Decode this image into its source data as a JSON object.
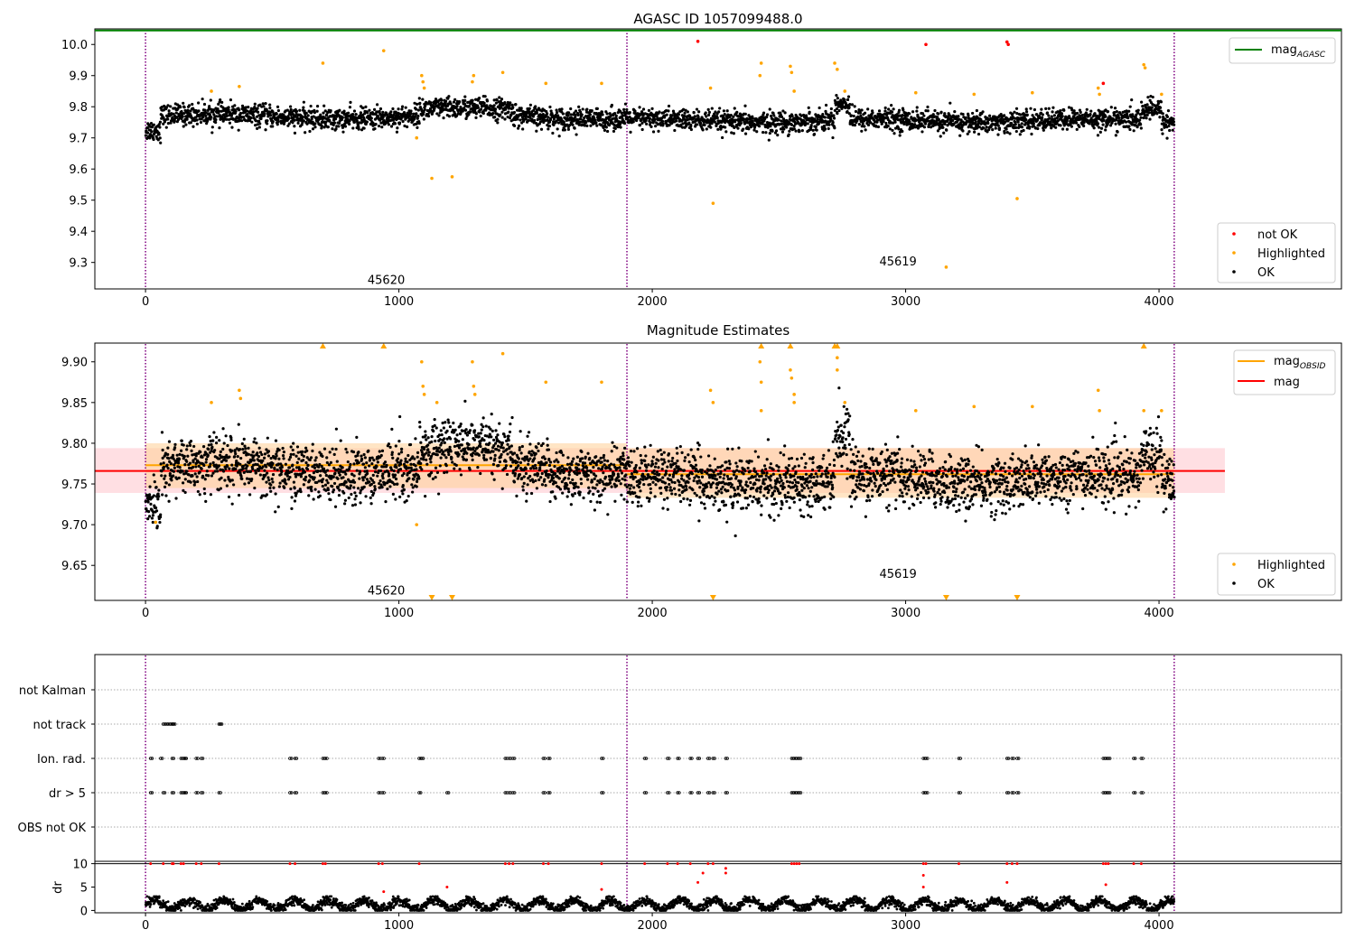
{
  "chart_data": [
    {
      "type": "scatter",
      "title": "AGASC ID 1057099488.0",
      "xlim": [
        -200,
        4720
      ],
      "ylim": [
        9.215,
        10.05
      ],
      "xticks": [
        0,
        1000,
        2000,
        3000,
        4000
      ],
      "yticks": [
        9.3,
        9.4,
        9.5,
        9.6,
        9.7,
        9.8,
        9.9,
        10.0
      ],
      "ytick_labels": [
        "9.3",
        "9.4",
        "9.5",
        "9.6",
        "9.7",
        "9.8",
        "9.9",
        "10.0"
      ],
      "obsid_boundaries": [
        0,
        1900,
        4060
      ],
      "obsid_labels": [
        {
          "text": "45620",
          "x": 950,
          "y": 9.245
        },
        {
          "text": "45619",
          "x": 2970,
          "y": 9.305
        }
      ],
      "lines": [
        {
          "name": "mag",
          "sub": "AGASC",
          "value": 10.045,
          "color": "#008000"
        }
      ],
      "series": [
        {
          "name": "not OK",
          "color": "#ff0000",
          "points": [
            [
              2180,
              10.01
            ],
            [
              3080,
              10.0
            ],
            [
              3405,
              10.0
            ],
            [
              3400,
              10.008
            ],
            [
              3780,
              9.875
            ]
          ]
        },
        {
          "name": "Highlighted",
          "color": "#ffa500",
          "points": [
            [
              700,
              9.94
            ],
            [
              940,
              9.98
            ],
            [
              260,
              9.85
            ],
            [
              370,
              9.865
            ],
            [
              1090,
              9.9
            ],
            [
              1095,
              9.88
            ],
            [
              1100,
              9.86
            ],
            [
              1130,
              9.57
            ],
            [
              1210,
              9.575
            ],
            [
              1290,
              9.88
            ],
            [
              1295,
              9.9
            ],
            [
              1410,
              9.91
            ],
            [
              1580,
              9.875
            ],
            [
              1800,
              9.875
            ],
            [
              1070,
              9.7
            ],
            [
              2240,
              9.49
            ],
            [
              2230,
              9.86
            ],
            [
              2430,
              9.94
            ],
            [
              2425,
              9.9
            ],
            [
              2545,
              9.93
            ],
            [
              2550,
              9.91
            ],
            [
              2560,
              9.85
            ],
            [
              2720,
              9.94
            ],
            [
              2730,
              9.92
            ],
            [
              2760,
              9.85
            ],
            [
              3040,
              9.845
            ],
            [
              3160,
              9.285
            ],
            [
              3270,
              9.84
            ],
            [
              3440,
              9.505
            ],
            [
              3500,
              9.845
            ],
            [
              3760,
              9.86
            ],
            [
              3765,
              9.84
            ],
            [
              3940,
              9.935
            ],
            [
              3945,
              9.925
            ],
            [
              4010,
              9.84
            ]
          ]
        },
        {
          "name": "OK",
          "color": "#000000",
          "generated": true
        }
      ],
      "legend": [
        "not OK",
        "Highlighted",
        "OK"
      ],
      "legend_position": "lower right"
    },
    {
      "type": "scatter",
      "title": "Magnitude Estimates",
      "xlim": [
        -200,
        4720
      ],
      "ylim": [
        9.607,
        9.923
      ],
      "xticks": [
        0,
        1000,
        2000,
        3000,
        4000
      ],
      "yticks": [
        9.65,
        9.7,
        9.75,
        9.8,
        9.85,
        9.9
      ],
      "ytick_labels": [
        "9.65",
        "9.70",
        "9.75",
        "9.80",
        "9.85",
        "9.90"
      ],
      "obsid_boundaries": [
        0,
        1900,
        4060
      ],
      "obsid_labels": [
        {
          "text": "45620",
          "x": 950,
          "y": 9.62
        },
        {
          "text": "45619",
          "x": 2970,
          "y": 9.64
        }
      ],
      "lines": [
        {
          "name": "mag",
          "sub": "OBSID",
          "color": "#ffa500",
          "segments": [
            [
              0,
              1900,
              9.773
            ],
            [
              1900,
              4060,
              9.762
            ]
          ]
        },
        {
          "name": "mag",
          "color": "#ff0000",
          "value": 9.766
        }
      ],
      "bands": [
        {
          "x0": -200,
          "x1": 4260,
          "y0": 9.739,
          "y1": 9.794,
          "color": "#ffb0b8"
        },
        {
          "x0": 0,
          "x1": 1900,
          "y0": 9.745,
          "y1": 9.8,
          "color": "#ffcf96"
        },
        {
          "x0": 1900,
          "x1": 4060,
          "y0": 9.733,
          "y1": 9.794,
          "color": "#ffcf96"
        }
      ],
      "series": [
        {
          "name": "Highlighted",
          "color": "#ffa500",
          "points": [
            [
              260,
              9.85
            ],
            [
              370,
              9.865
            ],
            [
              375,
              9.855
            ],
            [
              1090,
              9.9
            ],
            [
              1095,
              9.87
            ],
            [
              1100,
              9.86
            ],
            [
              1150,
              9.85
            ],
            [
              1290,
              9.9
            ],
            [
              1295,
              9.87
            ],
            [
              1300,
              9.86
            ],
            [
              1410,
              9.91
            ],
            [
              1580,
              9.875
            ],
            [
              1800,
              9.875
            ],
            [
              1070,
              9.7
            ],
            [
              2230,
              9.865
            ],
            [
              2240,
              9.85
            ],
            [
              2425,
              9.9
            ],
            [
              2430,
              9.875
            ],
            [
              2430,
              9.84
            ],
            [
              2545,
              9.89
            ],
            [
              2550,
              9.88
            ],
            [
              2560,
              9.86
            ],
            [
              2560,
              9.85
            ],
            [
              2730,
              9.905
            ],
            [
              2730,
              9.89
            ],
            [
              2760,
              9.85
            ],
            [
              3040,
              9.84
            ],
            [
              3270,
              9.845
            ],
            [
              3500,
              9.845
            ],
            [
              3760,
              9.865
            ],
            [
              3765,
              9.84
            ],
            [
              4010,
              9.84
            ],
            [
              3940,
              9.84
            ],
            [
              40,
              9.703
            ]
          ]
        },
        {
          "name": "OK",
          "color": "#000000",
          "generated": true
        }
      ],
      "clipped_markers": [
        {
          "x": 700,
          "edge": "top"
        },
        {
          "x": 940,
          "edge": "top"
        },
        {
          "x": 2430,
          "edge": "top"
        },
        {
          "x": 2545,
          "edge": "top"
        },
        {
          "x": 2720,
          "edge": "top"
        },
        {
          "x": 2730,
          "edge": "top"
        },
        {
          "x": 3940,
          "edge": "top"
        },
        {
          "x": 1130,
          "edge": "bottom"
        },
        {
          "x": 1210,
          "edge": "bottom"
        },
        {
          "x": 2240,
          "edge": "bottom"
        },
        {
          "x": 3160,
          "edge": "bottom"
        },
        {
          "x": 3440,
          "edge": "bottom"
        }
      ],
      "legend": [
        "Highlighted",
        "OK"
      ],
      "legend_position": "lower right"
    },
    {
      "type": "scatter",
      "title": "",
      "xlim": [
        -200,
        4720
      ],
      "flag_rows": [
        "not Kalman",
        "not track",
        "Ion. rad.",
        "dr > 5",
        "OBS not OK"
      ],
      "flag_points": {
        "not track": [
          70,
          80,
          90,
          100,
          105,
          110,
          290,
          295
        ],
        "Ion. rad.": [
          20,
          60,
          105,
          140,
          150,
          155,
          200,
          220,
          570,
          590,
          700,
          710,
          920,
          935,
          1080,
          1090,
          1420,
          1435,
          1450,
          1570,
          1590,
          1800,
          1970,
          2060,
          2100,
          2150,
          2180,
          2220,
          2240,
          2290,
          2550,
          2560,
          2570,
          2580,
          3070,
          3080,
          3210,
          3400,
          3420,
          3440,
          3780,
          3790,
          3800,
          3900,
          3930
        ],
        "dr > 5": [
          20,
          70,
          105,
          140,
          150,
          155,
          200,
          220,
          290,
          570,
          590,
          700,
          710,
          920,
          935,
          1080,
          1190,
          1420,
          1435,
          1450,
          1570,
          1590,
          1800,
          1970,
          2060,
          2100,
          2150,
          2180,
          2220,
          2240,
          2290,
          2550,
          2560,
          2570,
          2580,
          3070,
          3080,
          3210,
          3400,
          3420,
          3440,
          3780,
          3790,
          3800,
          3900,
          3930
        ]
      }
    },
    {
      "type": "scatter",
      "xlim": [
        -200,
        4720
      ],
      "ylim": [
        -0.5,
        10.5
      ],
      "ylabel": "dr",
      "xticks": [
        0,
        1000,
        2000,
        3000,
        4000
      ],
      "yticks": [
        0,
        5,
        10
      ],
      "ytick_labels": [
        "0",
        "5",
        "10"
      ],
      "clip_value": 10,
      "red_points": [
        [
          20,
          10
        ],
        [
          70,
          10
        ],
        [
          105,
          10
        ],
        [
          110,
          10
        ],
        [
          140,
          10
        ],
        [
          150,
          10
        ],
        [
          200,
          10
        ],
        [
          220,
          10
        ],
        [
          290,
          10
        ],
        [
          570,
          10
        ],
        [
          590,
          10
        ],
        [
          700,
          10
        ],
        [
          710,
          10
        ],
        [
          920,
          10
        ],
        [
          935,
          10
        ],
        [
          1080,
          10
        ],
        [
          1420,
          10
        ],
        [
          1435,
          10
        ],
        [
          1450,
          10
        ],
        [
          1570,
          10
        ],
        [
          1590,
          10
        ],
        [
          1800,
          10
        ],
        [
          1970,
          10
        ],
        [
          2060,
          10
        ],
        [
          2100,
          10
        ],
        [
          2150,
          10
        ],
        [
          2220,
          10
        ],
        [
          2240,
          10
        ],
        [
          2290,
          9
        ],
        [
          2290,
          8
        ],
        [
          2550,
          10
        ],
        [
          2560,
          10
        ],
        [
          2570,
          10
        ],
        [
          2580,
          10
        ],
        [
          3070,
          10
        ],
        [
          3080,
          10
        ],
        [
          3210,
          10
        ],
        [
          3400,
          10
        ],
        [
          3420,
          10
        ],
        [
          3440,
          10
        ],
        [
          3780,
          10
        ],
        [
          3790,
          10
        ],
        [
          3800,
          10
        ],
        [
          3900,
          10
        ],
        [
          3930,
          10
        ],
        [
          2180,
          6
        ],
        [
          2200,
          8
        ],
        [
          1190,
          5
        ],
        [
          940,
          4
        ],
        [
          1800,
          4.5
        ],
        [
          3070,
          7.5
        ],
        [
          3400,
          6
        ],
        [
          3790,
          5.5
        ],
        [
          3070,
          5
        ]
      ],
      "black_generated": true
    }
  ]
}
